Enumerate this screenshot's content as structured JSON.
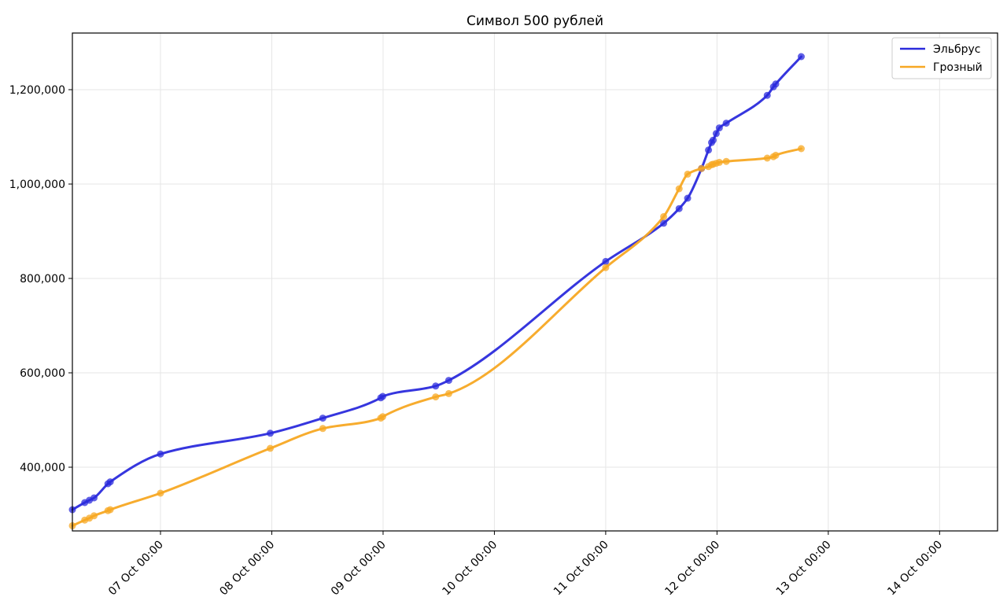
{
  "chart_data": {
    "type": "line",
    "title": "Символ 500 рублей",
    "xlabel": "",
    "ylabel": "",
    "x_axis_type": "datetime",
    "x_range": [
      "2023-10-06T05:00",
      "2023-10-14T12:30"
    ],
    "xtick_values": [
      "2023-10-07T00:00",
      "2023-10-08T00:00",
      "2023-10-09T00:00",
      "2023-10-10T00:00",
      "2023-10-11T00:00",
      "2023-10-12T00:00",
      "2023-10-13T00:00",
      "2023-10-14T00:00"
    ],
    "xtick_labels": [
      "07 Oct 00:00",
      "08 Oct 00:00",
      "09 Oct 00:00",
      "10 Oct 00:00",
      "11 Oct 00:00",
      "12 Oct 00:00",
      "13 Oct 00:00",
      "14 Oct 00:00"
    ],
    "ylim": [
      265000,
      1320000
    ],
    "yticks": [
      400000,
      600000,
      800000,
      1000000,
      1200000
    ],
    "ytick_labels": [
      "400,000",
      "600,000",
      "800,000",
      "1,000,000",
      "1,200,000"
    ],
    "grid": true,
    "legend_position": "top-right",
    "series": [
      {
        "name": "Эльбрус",
        "color": "#2b2bdc",
        "points": [
          [
            "2023-10-06T05:00",
            310000
          ],
          [
            "2023-10-06T07:40",
            325000
          ],
          [
            "2023-10-06T08:40",
            330000
          ],
          [
            "2023-10-06T09:40",
            335000
          ],
          [
            "2023-10-06T12:40",
            365000
          ],
          [
            "2023-10-06T13:10",
            369000
          ],
          [
            "2023-10-07T00:00",
            428000
          ],
          [
            "2023-10-07T23:40",
            472000
          ],
          [
            "2023-10-08T11:00",
            504000
          ],
          [
            "2023-10-08T23:30",
            547000
          ],
          [
            "2023-10-08T23:55",
            550000
          ],
          [
            "2023-10-09T11:20",
            572000
          ],
          [
            "2023-10-09T14:10",
            584000
          ],
          [
            "2023-10-11T00:00",
            836000
          ],
          [
            "2023-10-11T12:30",
            917000
          ],
          [
            "2023-10-11T15:50",
            948000
          ],
          [
            "2023-10-11T17:40",
            970000
          ],
          [
            "2023-10-11T20:40",
            1033000
          ],
          [
            "2023-10-11T22:10",
            1072000
          ],
          [
            "2023-10-11T22:50",
            1088000
          ],
          [
            "2023-10-11T23:10",
            1093000
          ],
          [
            "2023-10-11T23:50",
            1107000
          ],
          [
            "2023-10-12T00:30",
            1119000
          ],
          [
            "2023-10-12T02:00",
            1129000
          ],
          [
            "2023-10-12T10:50",
            1188000
          ],
          [
            "2023-10-12T12:10",
            1206000
          ],
          [
            "2023-10-12T12:40",
            1212000
          ],
          [
            "2023-10-12T18:10",
            1270000
          ]
        ]
      },
      {
        "name": "Грозный",
        "color": "#f7a823",
        "points": [
          [
            "2023-10-06T05:00",
            276000
          ],
          [
            "2023-10-06T07:40",
            288000
          ],
          [
            "2023-10-06T08:40",
            292000
          ],
          [
            "2023-10-06T09:40",
            297000
          ],
          [
            "2023-10-06T12:40",
            308000
          ],
          [
            "2023-10-06T13:10",
            310000
          ],
          [
            "2023-10-07T00:00",
            345000
          ],
          [
            "2023-10-07T23:40",
            440000
          ],
          [
            "2023-10-08T11:00",
            482000
          ],
          [
            "2023-10-08T23:30",
            504000
          ],
          [
            "2023-10-08T23:55",
            507000
          ],
          [
            "2023-10-09T11:20",
            549000
          ],
          [
            "2023-10-09T14:10",
            556000
          ],
          [
            "2023-10-11T00:00",
            823000
          ],
          [
            "2023-10-11T12:30",
            931000
          ],
          [
            "2023-10-11T15:50",
            990000
          ],
          [
            "2023-10-11T17:40",
            1021000
          ],
          [
            "2023-10-11T20:40",
            1033000
          ],
          [
            "2023-10-11T22:10",
            1037000
          ],
          [
            "2023-10-11T22:50",
            1041000
          ],
          [
            "2023-10-11T23:10",
            1042000
          ],
          [
            "2023-10-11T23:50",
            1044000
          ],
          [
            "2023-10-12T00:30",
            1046000
          ],
          [
            "2023-10-12T02:00",
            1048000
          ],
          [
            "2023-10-12T10:50",
            1055000
          ],
          [
            "2023-10-12T12:10",
            1058000
          ],
          [
            "2023-10-12T12:40",
            1061000
          ],
          [
            "2023-10-12T18:10",
            1075000
          ]
        ]
      }
    ]
  }
}
